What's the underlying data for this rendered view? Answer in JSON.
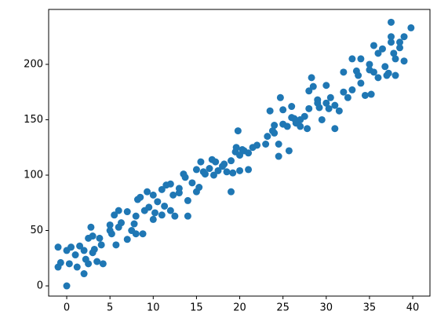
{
  "chart_data": {
    "type": "scatter",
    "color": "#1f77b4",
    "xlim": [
      -2.09,
      41.99
    ],
    "ylim": [
      -9.2,
      249.6
    ],
    "xticks": [
      0,
      5,
      10,
      15,
      20,
      25,
      30,
      35,
      40
    ],
    "yticks": [
      0,
      50,
      100,
      150,
      200
    ],
    "x": [
      -1,
      -1,
      -0.7,
      0,
      0,
      0.3,
      0.5,
      1,
      1.2,
      1.5,
      2,
      2,
      2.2,
      2.5,
      2.5,
      2.8,
      3,
      3,
      3.2,
      3.5,
      3.8,
      4,
      4.2,
      5,
      5,
      5.2,
      5.5,
      5.7,
      6,
      6,
      6.3,
      7,
      7,
      7.5,
      7.8,
      8,
      8,
      8.2,
      8.5,
      8.8,
      9,
      9.3,
      9.5,
      10,
      10,
      10.2,
      10.5,
      11,
      11,
      11.3,
      11.5,
      12,
      12,
      12.3,
      12.5,
      13,
      13,
      13.5,
      13.7,
      14,
      14,
      14.5,
      15,
      15,
      15.3,
      15.5,
      15.8,
      16,
      16.5,
      16.8,
      17,
      17.2,
      17.5,
      18,
      18.2,
      18.5,
      19,
      19,
      19.2,
      19.5,
      19.6,
      19.8,
      20,
      20,
      20.3,
      20.5,
      21,
      21,
      21.5,
      22,
      23,
      23.2,
      23.5,
      23.8,
      24,
      24,
      24.5,
      24.5,
      24.7,
      25,
      25,
      25.5,
      25.7,
      26,
      26,
      26.3,
      26.5,
      27,
      27,
      27.5,
      27.8,
      28,
      28,
      28.3,
      28.5,
      29,
      29,
      29.2,
      29.5,
      30,
      30,
      30.3,
      30.5,
      31,
      31,
      31.5,
      32,
      32,
      32.5,
      33,
      33,
      33.5,
      33.7,
      34,
      34,
      34.5,
      35,
      35,
      35.2,
      35.5,
      35.5,
      36,
      36,
      36.5,
      36.8,
      37,
      37.2,
      37.5,
      37.5,
      37.5,
      37.8,
      38,
      38,
      38.5,
      38.5,
      39,
      39,
      39.8
    ],
    "values": [
      17,
      35,
      21,
      0,
      32,
      20,
      35,
      28,
      17,
      36,
      11,
      32,
      24,
      20,
      43,
      53,
      30,
      45,
      33,
      22,
      43,
      37,
      20,
      55,
      50,
      47,
      64,
      37,
      53,
      68,
      57,
      67,
      42,
      50,
      56,
      63,
      47,
      78,
      80,
      47,
      68,
      85,
      71,
      60,
      82,
      66,
      76,
      87,
      64,
      72,
      91,
      92,
      68,
      82,
      63,
      88,
      84,
      101,
      98,
      77,
      63,
      93,
      105,
      85,
      89,
      112,
      103,
      101,
      106,
      114,
      100,
      112,
      104,
      108,
      110,
      103,
      85,
      113,
      102,
      121,
      125,
      140,
      104,
      118,
      123,
      122,
      105,
      120,
      125,
      127,
      128,
      135,
      158,
      140,
      145,
      138,
      117,
      128,
      170,
      159,
      146,
      144,
      122,
      152,
      162,
      151,
      147,
      144,
      150,
      153,
      142,
      160,
      176,
      188,
      180,
      168,
      165,
      161,
      150,
      181,
      165,
      160,
      170,
      142,
      163,
      158,
      193,
      175,
      170,
      205,
      177,
      194,
      190,
      205,
      183,
      172,
      200,
      195,
      173,
      217,
      193,
      210,
      188,
      214,
      198,
      190,
      192,
      238,
      225,
      220,
      210,
      190,
      205,
      220,
      215,
      225,
      203,
      233
    ]
  }
}
